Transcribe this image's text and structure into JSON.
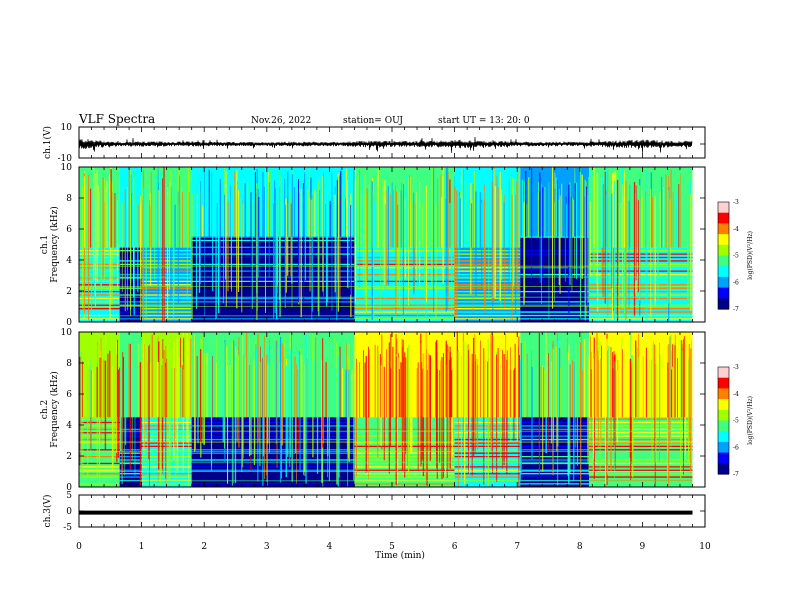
{
  "header": {
    "title": "VLF Spectra",
    "date": "Nov.26, 2022",
    "station": "station= OUJ",
    "start": "start  UT =   13: 20: 0"
  },
  "chart_data": [
    {
      "type": "line",
      "panel": "waveform-ch1",
      "ylabel": "ch.1(V)",
      "ylim": [
        -10,
        10
      ],
      "ytick_labels": [
        "10",
        "-10"
      ],
      "xlim": [
        0,
        10
      ],
      "series": [
        {
          "x": [
            0.0,
            0.3,
            0.5,
            0.7,
            1.0,
            1.4,
            1.8,
            2.2,
            2.6,
            3.0,
            3.4,
            3.8,
            4.2,
            4.4,
            4.7,
            5.0,
            5.4,
            5.8,
            6.1,
            6.4,
            6.8,
            7.0,
            7.4,
            7.8,
            8.1,
            8.4,
            8.7,
            9.0,
            9.3,
            9.6,
            9.8
          ],
          "amplitude": [
            3.0,
            2.2,
            1.5,
            1.2,
            1.6,
            1.3,
            1.4,
            1.2,
            1.1,
            1.1,
            1.3,
            1.2,
            1.2,
            1.5,
            2.0,
            1.6,
            1.6,
            1.8,
            2.4,
            1.8,
            1.6,
            1.4,
            1.2,
            1.3,
            1.3,
            1.8,
            2.2,
            2.4,
            2.0,
            1.8,
            1.6
          ]
        }
      ]
    },
    {
      "type": "heatmap",
      "panel": "spectrogram-ch1",
      "ylabel": "ch.1 Frequency (kHz)",
      "ylim": [
        0,
        10
      ],
      "ytick_labels": [
        "0",
        "2",
        "4",
        "6",
        "8",
        "10"
      ],
      "xlim": [
        0,
        10
      ],
      "colorbar": {
        "label": "log(PSD)(V²/Hz)",
        "ticks": [
          "-3",
          "-4",
          "-5",
          "-6",
          "-7"
        ],
        "range": [
          -7,
          -3
        ]
      },
      "segments": [
        {
          "t": [
            0.0,
            0.65
          ],
          "low_band_top_khz": 4.8,
          "low_log_psd": -4.2,
          "high_log_psd": -5.0
        },
        {
          "t": [
            0.65,
            1.0
          ],
          "low_band_top_khz": 4.8,
          "low_log_psd": -6.0,
          "high_log_psd": -5.4
        },
        {
          "t": [
            1.0,
            1.8
          ],
          "low_band_top_khz": 4.8,
          "low_log_psd": -4.5,
          "high_log_psd": -5.1
        },
        {
          "t": [
            1.8,
            4.4
          ],
          "low_band_top_khz": 5.5,
          "low_log_psd": -6.5,
          "high_log_psd": -5.6
        },
        {
          "t": [
            4.4,
            6.0
          ],
          "low_band_top_khz": 4.8,
          "low_log_psd": -4.4,
          "high_log_psd": -5.2
        },
        {
          "t": [
            6.0,
            7.05
          ],
          "low_band_top_khz": 4.8,
          "low_log_psd": -4.6,
          "high_log_psd": -5.3
        },
        {
          "t": [
            7.05,
            8.15
          ],
          "low_band_top_khz": 5.5,
          "low_log_psd": -6.4,
          "high_log_psd": -5.8
        },
        {
          "t": [
            8.15,
            9.8
          ],
          "low_band_top_khz": 4.8,
          "low_log_psd": -4.2,
          "high_log_psd": -5.0
        }
      ]
    },
    {
      "type": "heatmap",
      "panel": "spectrogram-ch2",
      "ylabel": "ch.2 Frequency (kHz)",
      "ylim": [
        0,
        10
      ],
      "ytick_labels": [
        "0",
        "2",
        "4",
        "6",
        "8",
        "10"
      ],
      "xlim": [
        0,
        10
      ],
      "colorbar": {
        "label": "log(PSD)(V²/Hz)",
        "ticks": [
          "-3",
          "-4",
          "-5",
          "-6",
          "-7"
        ],
        "range": [
          -7,
          -3
        ]
      },
      "segments": [
        {
          "t": [
            0.0,
            0.65
          ],
          "low_band_top_khz": 4.5,
          "low_log_psd": -4.0,
          "high_log_psd": -4.4
        },
        {
          "t": [
            0.65,
            1.0
          ],
          "low_band_top_khz": 4.5,
          "low_log_psd": -6.0,
          "high_log_psd": -4.8
        },
        {
          "t": [
            1.0,
            1.8
          ],
          "low_band_top_khz": 4.5,
          "low_log_psd": -4.2,
          "high_log_psd": -4.5
        },
        {
          "t": [
            1.8,
            4.4
          ],
          "low_band_top_khz": 4.5,
          "low_log_psd": -6.4,
          "high_log_psd": -5.0
        },
        {
          "t": [
            4.4,
            6.0
          ],
          "low_band_top_khz": 4.5,
          "low_log_psd": -4.0,
          "high_log_psd": -3.9
        },
        {
          "t": [
            6.0,
            7.05
          ],
          "low_band_top_khz": 4.5,
          "low_log_psd": -4.2,
          "high_log_psd": -4.0
        },
        {
          "t": [
            7.05,
            8.15
          ],
          "low_band_top_khz": 4.5,
          "low_log_psd": -6.2,
          "high_log_psd": -5.0
        },
        {
          "t": [
            8.15,
            9.8
          ],
          "low_band_top_khz": 4.5,
          "low_log_psd": -4.0,
          "high_log_psd": -4.3
        }
      ]
    },
    {
      "type": "line",
      "panel": "waveform-ch3",
      "ylabel": "ch.3(V)",
      "ylim": [
        -5,
        5
      ],
      "ytick_labels": [
        "5",
        "0",
        "-5"
      ],
      "xlim": [
        0,
        10
      ],
      "series": [
        {
          "x": [
            0,
            9.8
          ],
          "y": [
            -0.5,
            -0.5
          ]
        }
      ]
    }
  ],
  "xaxis": {
    "label": "Time (min)",
    "ticks": [
      "0",
      "1",
      "2",
      "3",
      "4",
      "5",
      "6",
      "7",
      "8",
      "9",
      "10"
    ]
  },
  "colors": {
    "colormap": [
      "#00008b",
      "#0000ff",
      "#00a0ff",
      "#00ffff",
      "#40ff80",
      "#a0ff00",
      "#ffff00",
      "#ff8000",
      "#ff0000",
      "#ffd0d0"
    ]
  }
}
